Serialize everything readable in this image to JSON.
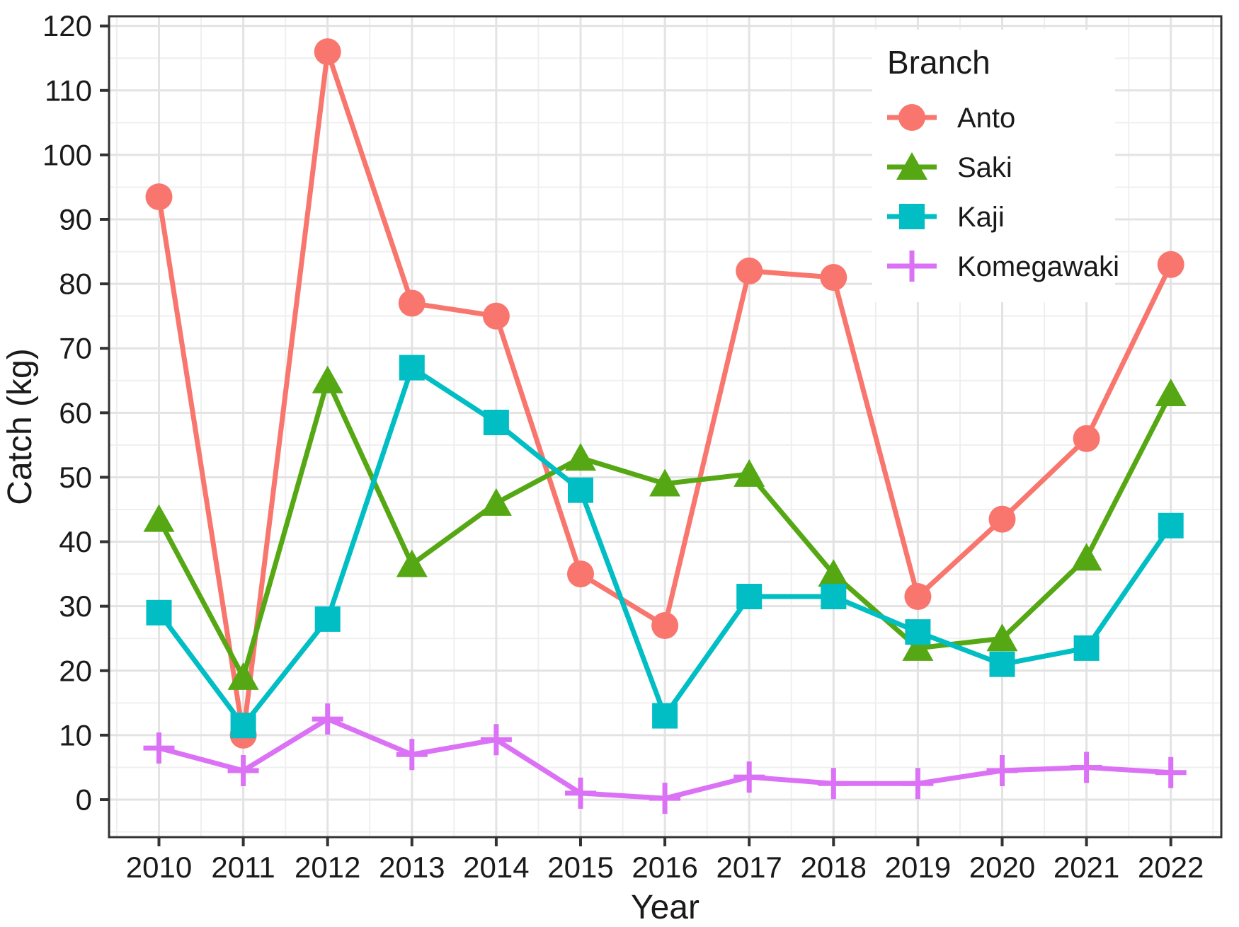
{
  "chart_data": {
    "type": "line",
    "title": "",
    "xlabel": "Year",
    "ylabel": "Catch (kg)",
    "legend_title": "Branch",
    "legend_position": "inside-top-right",
    "grid": "major-and-minor",
    "x": [
      2010,
      2011,
      2012,
      2013,
      2014,
      2015,
      2016,
      2017,
      2018,
      2019,
      2020,
      2021,
      2022
    ],
    "x_tick_labels": [
      "2010",
      "2011",
      "2012",
      "2013",
      "2014",
      "2015",
      "2016",
      "2017",
      "2018",
      "2019",
      "2020",
      "2021",
      "2022"
    ],
    "y_ticks": [
      0,
      10,
      20,
      30,
      40,
      50,
      60,
      70,
      80,
      90,
      100,
      110,
      120
    ],
    "y_tick_labels": [
      "0",
      "10",
      "20",
      "30",
      "40",
      "50",
      "60",
      "70",
      "80",
      "90",
      "100",
      "110",
      "120"
    ],
    "xlim": [
      2009.41,
      2022.6
    ],
    "ylim": [
      -5.8,
      121.5
    ],
    "series": [
      {
        "name": "Anto",
        "marker": "circle",
        "color": "#F8766D",
        "values": [
          93.5,
          10,
          116,
          77,
          75,
          35,
          27,
          82,
          81,
          31.5,
          43.5,
          56,
          83
        ]
      },
      {
        "name": "Saki",
        "marker": "triangle",
        "color": "#55A813",
        "values": [
          43.5,
          19,
          65,
          36.5,
          46,
          53,
          49,
          50.5,
          35,
          23.5,
          25,
          37.5,
          63
        ]
      },
      {
        "name": "Kaji",
        "marker": "square",
        "color": "#00BEC4",
        "values": [
          29,
          11.5,
          28,
          67,
          58.5,
          48,
          13,
          31.5,
          31.5,
          26,
          21,
          23.5,
          42.5
        ]
      },
      {
        "name": "Komegawaki",
        "marker": "plus",
        "color": "#DB72F6",
        "values": [
          8,
          4.5,
          12.5,
          7,
          9.3,
          1,
          0.2,
          3.5,
          2.5,
          2.5,
          4.5,
          5,
          4.2
        ]
      }
    ],
    "style": {
      "background": "#ffffff",
      "panel_border_color": "#333333",
      "major_grid_color": "#e3e3e3",
      "minor_grid_color": "#efefef",
      "tick_color": "#333333",
      "text_color": "#1a1a1a"
    }
  }
}
